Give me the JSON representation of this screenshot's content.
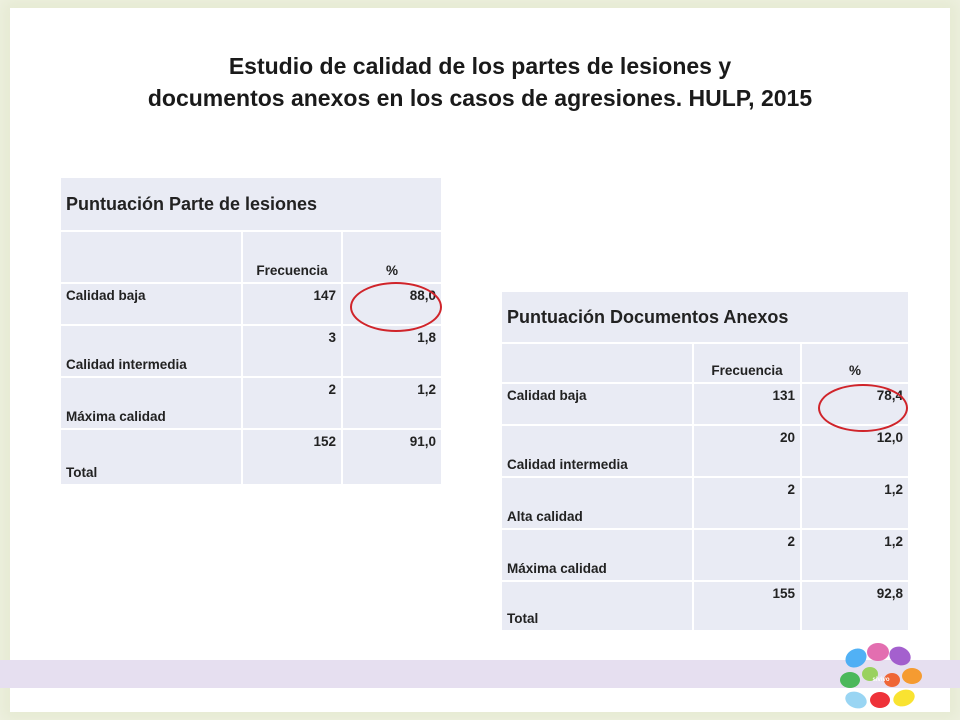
{
  "title": {
    "line1": "Estudio de calidad de los partes de lesiones y",
    "line2": "documentos anexos en los casos de agresiones. HULP, 2015"
  },
  "table1": {
    "heading": "Puntuación Parte de lesiones",
    "col_freq": "Frecuencia",
    "col_pct": "%",
    "rows": [
      {
        "label": "Calidad baja",
        "freq": "147",
        "pct": "88,0"
      },
      {
        "label": "Calidad intermedia",
        "freq": "3",
        "pct": "1,8"
      },
      {
        "label": "Máxima calidad",
        "freq": "2",
        "pct": "1,2"
      },
      {
        "label": "Total",
        "freq": "152",
        "pct": "91,0"
      }
    ]
  },
  "table2": {
    "heading": "Puntuación Documentos Anexos",
    "col_freq": "Frecuencia",
    "col_pct": "%",
    "rows": [
      {
        "label": "Calidad baja",
        "freq": "131",
        "pct": "78,4"
      },
      {
        "label": "Calidad intermedia",
        "freq": "20",
        "pct": "12,0"
      },
      {
        "label": "Alta calidad",
        "freq": "2",
        "pct": "1,2"
      },
      {
        "label": "Máxima calidad",
        "freq": "2",
        "pct": "1,2"
      },
      {
        "label": "Total",
        "freq": "155",
        "pct": "92,8"
      }
    ]
  },
  "logo": {
    "text": "sivivo"
  },
  "colors": {
    "highlight_circle": "#d0242a",
    "table_fill": "#e9ebf4",
    "footer_band": "#e6dff0"
  }
}
